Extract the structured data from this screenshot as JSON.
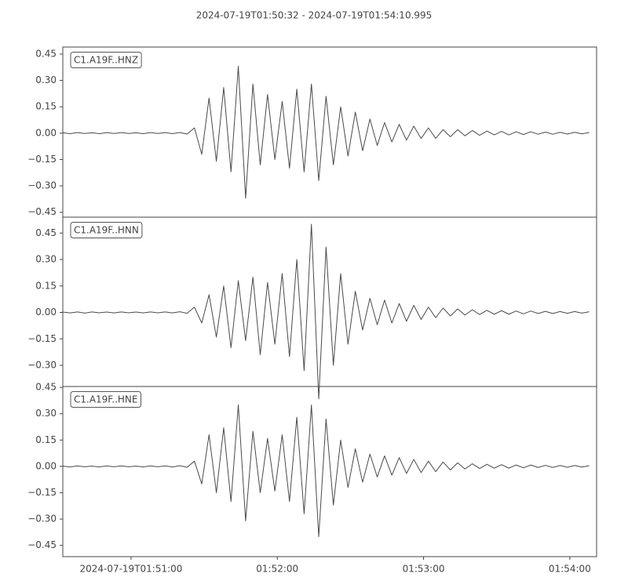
{
  "chart_data": {
    "type": "line",
    "title": "2024-07-19T01:50:32  -  2024-07-19T01:54:10.995",
    "x": [
      "2024-07-19T01:50:32",
      "2024-07-19T01:50:35",
      "2024-07-19T01:50:38",
      "2024-07-19T01:50:41",
      "2024-07-19T01:50:44",
      "2024-07-19T01:50:47",
      "2024-07-19T01:50:50",
      "2024-07-19T01:50:53",
      "2024-07-19T01:50:56",
      "2024-07-19T01:50:59",
      "2024-07-19T01:51:02",
      "2024-07-19T01:51:05",
      "2024-07-19T01:51:08",
      "2024-07-19T01:51:11",
      "2024-07-19T01:51:14",
      "2024-07-19T01:51:17",
      "2024-07-19T01:51:20",
      "2024-07-19T01:51:23",
      "2024-07-19T01:51:26",
      "2024-07-19T01:51:29",
      "2024-07-19T01:51:32",
      "2024-07-19T01:51:35",
      "2024-07-19T01:51:38",
      "2024-07-19T01:51:41",
      "2024-07-19T01:51:44",
      "2024-07-19T01:51:47",
      "2024-07-19T01:51:50",
      "2024-07-19T01:51:53",
      "2024-07-19T01:51:56",
      "2024-07-19T01:51:59",
      "2024-07-19T01:52:02",
      "2024-07-19T01:52:05",
      "2024-07-19T01:52:08",
      "2024-07-19T01:52:11",
      "2024-07-19T01:52:14",
      "2024-07-19T01:52:17",
      "2024-07-19T01:52:20",
      "2024-07-19T01:52:23",
      "2024-07-19T01:52:26",
      "2024-07-19T01:52:29",
      "2024-07-19T01:52:32",
      "2024-07-19T01:52:35",
      "2024-07-19T01:52:38",
      "2024-07-19T01:52:41",
      "2024-07-19T01:52:44",
      "2024-07-19T01:52:47",
      "2024-07-19T01:52:50",
      "2024-07-19T01:52:53",
      "2024-07-19T01:52:56",
      "2024-07-19T01:52:59",
      "2024-07-19T01:53:02",
      "2024-07-19T01:53:05",
      "2024-07-19T01:53:08",
      "2024-07-19T01:53:11",
      "2024-07-19T01:53:14",
      "2024-07-19T01:53:17",
      "2024-07-19T01:53:20",
      "2024-07-19T01:53:23",
      "2024-07-19T01:53:26",
      "2024-07-19T01:53:29",
      "2024-07-19T01:53:32",
      "2024-07-19T01:53:35",
      "2024-07-19T01:53:38",
      "2024-07-19T01:53:41",
      "2024-07-19T01:53:44",
      "2024-07-19T01:53:47",
      "2024-07-19T01:53:50",
      "2024-07-19T01:53:53",
      "2024-07-19T01:53:56",
      "2024-07-19T01:53:59",
      "2024-07-19T01:54:02",
      "2024-07-19T01:54:05",
      "2024-07-19T01:54:08"
    ],
    "xlim": [
      "2024-07-19T01:50:32",
      "2024-07-19T01:54:10.995"
    ],
    "xticks": [
      "2024-07-19T01:51:00",
      {
        "value": "2024-07-19T01:52:00",
        "label": "01:52:00"
      },
      {
        "value": "2024-07-19T01:53:00",
        "label": "01:53:00"
      },
      {
        "value": "2024-07-19T01:54:00",
        "label": "01:54:00"
      }
    ],
    "series": [
      {
        "name": "C1.A19F..HNZ",
        "color": "#4a4a4a",
        "ylim": [
          -0.478,
          0.49
        ],
        "yticks": [
          {
            "value": -0.45,
            "label": "−0.45"
          },
          {
            "value": -0.3,
            "label": "−0.30"
          },
          {
            "value": -0.15,
            "label": "−0.15"
          },
          {
            "value": 0,
            "label": "0.00"
          },
          0.15,
          {
            "value": 0.3,
            "label": "0.30"
          },
          0.45
        ],
        "values": [
          0.002,
          -0.003,
          0.003,
          -0.002,
          0.002,
          -0.003,
          0.003,
          -0.002,
          0.003,
          -0.002,
          0.002,
          -0.003,
          0.003,
          -0.002,
          0.003,
          -0.003,
          0.004,
          -0.005,
          0.03,
          -0.12,
          0.2,
          -0.16,
          0.26,
          -0.22,
          0.38,
          -0.37,
          0.28,
          -0.18,
          0.22,
          -0.15,
          0.18,
          -0.2,
          0.25,
          -0.22,
          0.28,
          -0.27,
          0.21,
          -0.18,
          0.15,
          -0.13,
          0.12,
          -0.1,
          0.08,
          -0.07,
          0.06,
          -0.05,
          0.05,
          -0.04,
          0.04,
          -0.03,
          0.03,
          -0.03,
          0.02,
          -0.02,
          0.02,
          -0.015,
          0.015,
          -0.012,
          0.012,
          -0.01,
          0.01,
          -0.01,
          0.008,
          -0.008,
          0.008,
          -0.006,
          0.006,
          -0.006,
          0.005,
          -0.005,
          0.005,
          -0.004,
          0.004
        ]
      },
      {
        "name": "C1.A19F..HNN",
        "color": "#4a4a4a",
        "ylim": [
          -0.42,
          0.54
        ],
        "yticks": [
          {
            "value": -0.3,
            "label": "−0.30"
          },
          {
            "value": -0.15,
            "label": "−0.15"
          },
          {
            "value": 0,
            "label": "0.00"
          },
          0.15,
          {
            "value": 0.3,
            "label": "0.30"
          },
          0.45
        ],
        "values": [
          0.002,
          -0.003,
          0.003,
          -0.004,
          0.003,
          -0.002,
          0.002,
          -0.003,
          0.003,
          -0.002,
          0.002,
          -0.003,
          0.003,
          -0.002,
          0.003,
          -0.003,
          0.004,
          -0.005,
          0.03,
          -0.06,
          0.1,
          -0.14,
          0.15,
          -0.2,
          0.18,
          -0.16,
          0.2,
          -0.24,
          0.17,
          -0.18,
          0.22,
          -0.25,
          0.3,
          -0.33,
          0.5,
          -0.49,
          0.37,
          -0.3,
          0.22,
          -0.18,
          0.12,
          -0.1,
          0.08,
          -0.07,
          0.07,
          -0.06,
          0.05,
          -0.05,
          0.04,
          -0.04,
          0.03,
          -0.03,
          0.025,
          -0.02,
          0.02,
          -0.015,
          0.015,
          -0.012,
          0.012,
          -0.01,
          0.01,
          -0.01,
          0.008,
          -0.008,
          0.008,
          -0.006,
          0.006,
          -0.006,
          0.005,
          -0.005,
          0.005,
          -0.004,
          0.004
        ]
      },
      {
        "name": "C1.A19F..HNE",
        "color": "#4a4a4a",
        "ylim": [
          -0.514,
          0.455
        ],
        "yticks": [
          {
            "value": -0.45,
            "label": "−0.45"
          },
          {
            "value": -0.3,
            "label": "−0.30"
          },
          {
            "value": -0.15,
            "label": "−0.15"
          },
          {
            "value": 0,
            "label": "0.00"
          },
          0.15,
          {
            "value": 0.3,
            "label": "0.30"
          },
          0.45
        ],
        "values": [
          0.002,
          -0.003,
          0.003,
          -0.002,
          0.002,
          -0.003,
          0.003,
          -0.002,
          0.003,
          -0.002,
          0.002,
          -0.003,
          0.003,
          -0.002,
          0.003,
          -0.003,
          0.004,
          -0.005,
          0.03,
          -0.1,
          0.18,
          -0.15,
          0.22,
          -0.2,
          0.35,
          -0.31,
          0.2,
          -0.15,
          0.16,
          -0.14,
          0.18,
          -0.2,
          0.28,
          -0.27,
          0.35,
          -0.4,
          0.27,
          -0.22,
          0.15,
          -0.12,
          0.1,
          -0.09,
          0.07,
          -0.06,
          0.06,
          -0.05,
          0.05,
          -0.04,
          0.04,
          -0.035,
          0.03,
          -0.03,
          0.025,
          -0.02,
          0.02,
          -0.015,
          0.015,
          -0.012,
          0.012,
          -0.01,
          0.01,
          -0.01,
          0.008,
          -0.008,
          0.008,
          -0.006,
          0.006,
          -0.006,
          0.005,
          -0.005,
          0.005,
          -0.004,
          0.004
        ]
      }
    ]
  }
}
